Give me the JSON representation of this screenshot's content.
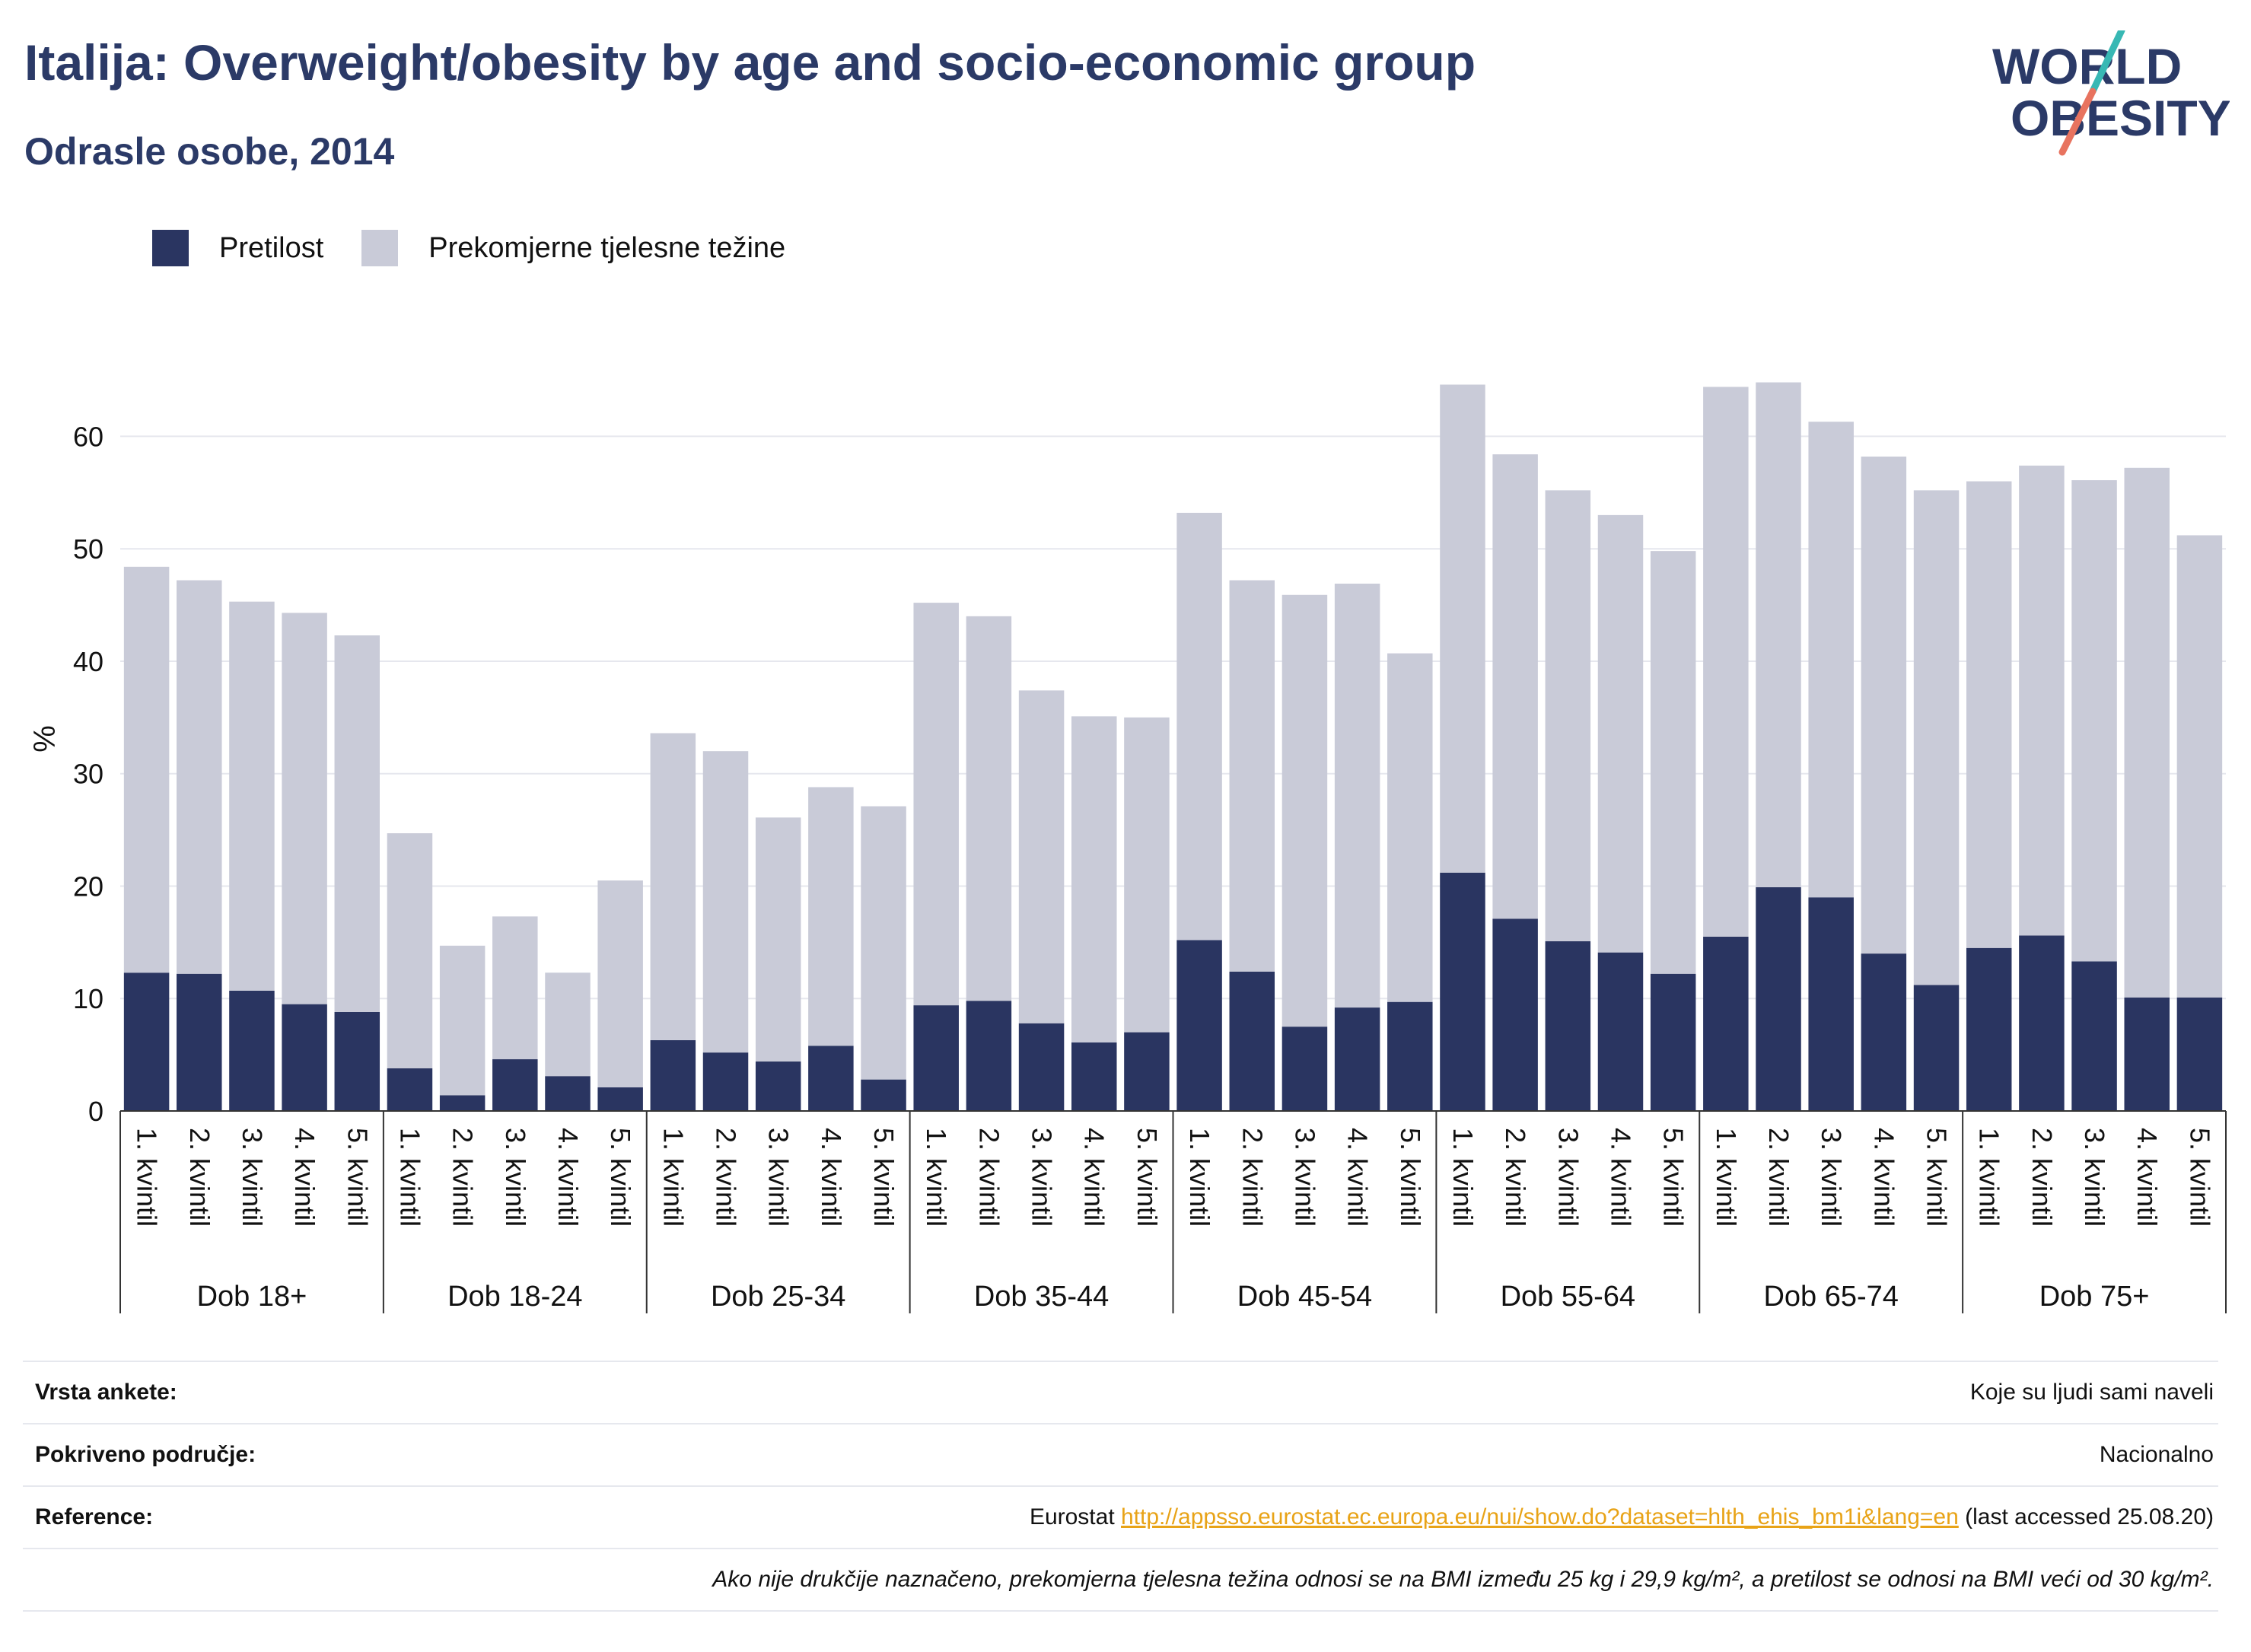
{
  "header": {
    "title": "Italija: Overweight/obesity by age and socio-economic group",
    "subtitle": "Odrasle osobe, 2014"
  },
  "logo": {
    "line1": "WORLD",
    "line2": "OBESITY",
    "accent_colors": [
      "#38b8b4",
      "#e8735f"
    ]
  },
  "legend": {
    "items": [
      {
        "label": "Pretilost",
        "color": "#2a3561"
      },
      {
        "label": "Prekomjerne tjelesne težine",
        "color": "#c9cbd8"
      }
    ]
  },
  "chart_data": {
    "type": "bar",
    "stacked": true,
    "ylabel": "%",
    "ylim": [
      0,
      67
    ],
    "yticks": [
      0,
      10,
      20,
      30,
      40,
      50,
      60
    ],
    "grid": true,
    "legend_position": "top-left",
    "groups": [
      {
        "label": "Dob 18+",
        "categories": [
          "1. kvintil",
          "2. kvintil",
          "3. kvintil",
          "4. kvintil",
          "5. kvintil"
        ]
      },
      {
        "label": "Dob 18-24",
        "categories": [
          "1. kvintil",
          "2. kvintil",
          "3. kvintil",
          "4. kvintil",
          "5. kvintil"
        ]
      },
      {
        "label": "Dob 25-34",
        "categories": [
          "1. kvintil",
          "2. kvintil",
          "3. kvintil",
          "4. kvintil",
          "5. kvintil"
        ]
      },
      {
        "label": "Dob 35-44",
        "categories": [
          "1. kvintil",
          "2. kvintil",
          "3. kvintil",
          "4. kvintil",
          "5. kvintil"
        ]
      },
      {
        "label": "Dob 45-54",
        "categories": [
          "1. kvintil",
          "2. kvintil",
          "3. kvintil",
          "4. kvintil",
          "5. kvintil"
        ]
      },
      {
        "label": "Dob 55-64",
        "categories": [
          "1. kvintil",
          "2. kvintil",
          "3. kvintil",
          "4. kvintil",
          "5. kvintil"
        ]
      },
      {
        "label": "Dob 65-74",
        "categories": [
          "1. kvintil",
          "2. kvintil",
          "3. kvintil",
          "4. kvintil",
          "5. kvintil"
        ]
      },
      {
        "label": "Dob 75+",
        "categories": [
          "1. kvintil",
          "2. kvintil",
          "3. kvintil",
          "4. kvintil",
          "5. kvintil"
        ]
      }
    ],
    "series": [
      {
        "name": "Pretilost",
        "color": "#2a3561",
        "values": [
          12.3,
          12.2,
          10.7,
          9.5,
          8.8,
          3.8,
          1.4,
          4.6,
          3.1,
          2.1,
          6.3,
          5.2,
          4.4,
          5.8,
          2.8,
          9.4,
          9.8,
          7.8,
          6.1,
          7.0,
          15.2,
          12.4,
          7.5,
          9.2,
          9.7,
          21.2,
          17.1,
          15.1,
          14.1,
          12.2,
          15.5,
          19.9,
          19.0,
          14.0,
          11.2,
          14.5,
          15.6,
          13.3,
          10.1,
          10.1
        ]
      },
      {
        "name": "Prekomjerne tjelesne težine",
        "color": "#c9cbd8",
        "values": [
          36.1,
          35.0,
          34.6,
          34.8,
          33.5,
          20.9,
          13.3,
          12.7,
          9.2,
          18.4,
          27.3,
          26.8,
          21.7,
          23.0,
          24.3,
          35.8,
          34.2,
          29.6,
          29.0,
          28.0,
          38.0,
          34.8,
          38.4,
          37.7,
          31.0,
          43.4,
          41.3,
          40.1,
          38.9,
          37.6,
          48.9,
          44.9,
          42.3,
          44.2,
          44.0,
          41.5,
          41.8,
          42.8,
          47.1,
          41.1
        ]
      }
    ]
  },
  "metadata": {
    "rows": [
      {
        "label": "Vrsta ankete:",
        "value": "Koje su ljudi sami naveli"
      },
      {
        "label": "Pokriveno područje:",
        "value": "Nacionalno"
      },
      {
        "label": "Reference:",
        "value_prefix": "Eurostat ",
        "link": "http://appsso.eurostat.ec.europa.eu/nui/show.do?dataset=hlth_ehis_bm1i&lang=en",
        "value_suffix": " (last accessed 25.08.20)"
      }
    ],
    "note": "Ako nije drukčije naznačeno, prekomjerna tjelesna težina odnosi se na BMI između 25 kg i 29,9 kg/m², a pretilost se odnosi na BMI veći od 30 kg/m²."
  }
}
